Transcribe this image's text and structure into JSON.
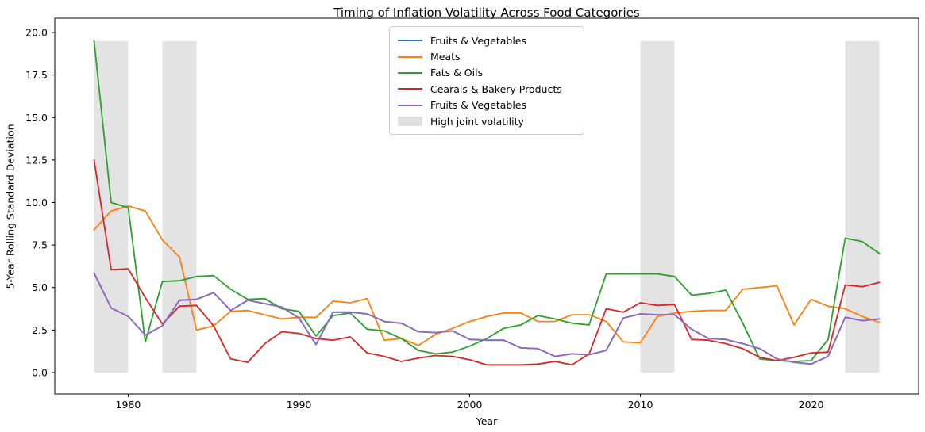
{
  "title": "Timing of Inflation Volatility Across Food Categories",
  "chart_data": {
    "type": "line",
    "title": "Timing of Inflation Volatility Across Food Categories",
    "xlabel": "Year",
    "ylabel": "5-Year Rolling Standard Deviation",
    "xlim": [
      1975.7,
      2026.3
    ],
    "ylim": [
      -1.26,
      20.84
    ],
    "grid": false,
    "x_ticks": [
      1980,
      1990,
      2000,
      2010,
      2020
    ],
    "x_tick_labels": [
      "1980",
      "1990",
      "2000",
      "2010",
      "2020"
    ],
    "y_ticks": [
      0,
      2.5,
      5,
      7.5,
      10,
      12.5,
      15,
      17.5,
      20
    ],
    "y_tick_labels": [
      "0.0",
      "2.5",
      "5.0",
      "7.5",
      "10.0",
      "12.5",
      "15.0",
      "17.5",
      "20.0"
    ],
    "x": [
      1978,
      1979,
      1980,
      1981,
      1982,
      1983,
      1984,
      1985,
      1986,
      1987,
      1988,
      1989,
      1990,
      1991,
      1992,
      1993,
      1994,
      1995,
      1996,
      1997,
      1998,
      1999,
      2000,
      2001,
      2002,
      2003,
      2004,
      2005,
      2006,
      2007,
      2008,
      2009,
      2010,
      2011,
      2012,
      2013,
      2014,
      2015,
      2016,
      2017,
      2018,
      2019,
      2020,
      2021,
      2022,
      2023,
      2024
    ],
    "series": [
      {
        "name": "Fruits & Vegetables",
        "color": "#1f77b4",
        "values": [
          5.85,
          3.8,
          3.3,
          2.2,
          2.75,
          4.25,
          4.3,
          4.7,
          3.65,
          4.25,
          4.05,
          3.85,
          3.2,
          1.65,
          3.55,
          3.55,
          3.45,
          3.0,
          2.9,
          2.4,
          2.35,
          2.45,
          1.95,
          1.9,
          1.9,
          1.45,
          1.4,
          0.95,
          1.1,
          1.05,
          1.3,
          3.2,
          3.45,
          3.4,
          3.4,
          2.55,
          2.0,
          1.95,
          1.7,
          1.4,
          0.8,
          0.6,
          0.5,
          0.95,
          3.25,
          3.05,
          3.15
        ]
      },
      {
        "name": "Meats",
        "color": "#ff7f0e",
        "values": [
          8.4,
          9.5,
          9.8,
          9.5,
          7.8,
          6.8,
          2.5,
          2.75,
          3.6,
          3.65,
          3.4,
          3.15,
          3.25,
          3.25,
          4.2,
          4.1,
          4.35,
          1.9,
          2.0,
          1.6,
          2.25,
          2.6,
          3.0,
          3.3,
          3.5,
          3.5,
          3.0,
          3.0,
          3.4,
          3.4,
          3.0,
          1.8,
          1.75,
          3.3,
          3.5,
          3.6,
          3.65,
          3.65,
          4.9,
          5.0,
          5.1,
          2.8,
          4.3,
          3.9,
          3.75,
          3.3,
          2.95
        ]
      },
      {
        "name": "Fats & Oils",
        "color": "#2ca02c",
        "values": [
          19.5,
          10.0,
          9.7,
          1.8,
          5.35,
          5.4,
          5.65,
          5.7,
          4.9,
          4.3,
          4.35,
          3.75,
          3.6,
          2.15,
          3.35,
          3.5,
          2.55,
          2.45,
          2.0,
          1.3,
          1.1,
          1.2,
          1.55,
          2.0,
          2.6,
          2.8,
          3.35,
          3.15,
          2.9,
          2.8,
          5.8,
          5.8,
          5.8,
          5.8,
          5.65,
          4.55,
          4.65,
          4.85,
          2.9,
          0.8,
          0.7,
          0.65,
          0.7,
          1.95,
          7.9,
          7.7,
          7.0
        ]
      },
      {
        "name": "Cearals & Bakery Products",
        "color": "#d62728",
        "values": [
          12.5,
          6.05,
          6.1,
          4.4,
          2.85,
          3.9,
          3.95,
          2.75,
          0.8,
          0.6,
          1.7,
          2.4,
          2.3,
          2.0,
          1.9,
          2.1,
          1.15,
          0.95,
          0.65,
          0.85,
          1.0,
          0.95,
          0.75,
          0.45,
          0.45,
          0.45,
          0.5,
          0.65,
          0.45,
          1.1,
          3.75,
          3.55,
          4.1,
          3.95,
          4.0,
          1.95,
          1.9,
          1.7,
          1.4,
          0.9,
          0.7,
          0.9,
          1.15,
          1.2,
          5.15,
          5.05,
          5.3
        ]
      },
      {
        "name": "Fruits & Vegetables",
        "color": "#9467bd",
        "values": [
          5.85,
          3.8,
          3.3,
          2.2,
          2.75,
          4.25,
          4.3,
          4.7,
          3.65,
          4.25,
          4.05,
          3.85,
          3.2,
          1.65,
          3.55,
          3.55,
          3.45,
          3.0,
          2.9,
          2.4,
          2.35,
          2.45,
          1.95,
          1.9,
          1.9,
          1.45,
          1.4,
          0.95,
          1.1,
          1.05,
          1.3,
          3.2,
          3.45,
          3.4,
          3.4,
          2.55,
          2.0,
          1.95,
          1.7,
          1.4,
          0.8,
          0.6,
          0.5,
          0.95,
          3.25,
          3.05,
          3.15
        ]
      }
    ],
    "highlight_bands": {
      "label": "High joint volatility",
      "color": "#e3e3e3",
      "y_bottom": 0,
      "y_top": 19.5,
      "ranges": [
        [
          1978,
          1980
        ],
        [
          1982,
          1984
        ],
        [
          2010,
          2012
        ],
        [
          2022,
          2024
        ]
      ]
    },
    "legend": {
      "entries": [
        {
          "label": "Fruits & Vegetables",
          "color": "#1f77b4",
          "type": "line"
        },
        {
          "label": "Meats",
          "color": "#ff7f0e",
          "type": "line"
        },
        {
          "label": "Fats & Oils",
          "color": "#2ca02c",
          "type": "line"
        },
        {
          "label": "Cearals & Bakery Products",
          "color": "#d62728",
          "type": "line"
        },
        {
          "label": "Fruits & Vegetables",
          "color": "#9467bd",
          "type": "line"
        },
        {
          "label": "High joint volatility",
          "color": "#e0e0e0",
          "type": "patch"
        }
      ]
    },
    "axis_color": "#000000",
    "background": "#ffffff"
  }
}
